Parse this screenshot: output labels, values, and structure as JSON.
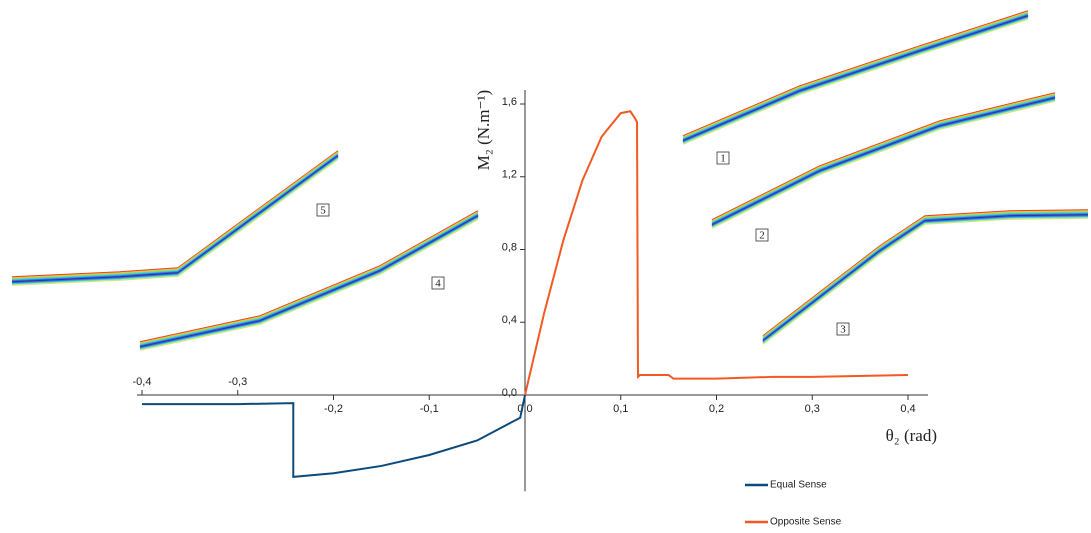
{
  "chart_data": {
    "type": "line",
    "x_label": "θ₂ (rad)",
    "y_label": "M₂ (N.m⁻¹)",
    "xlim": [
      -0.4,
      0.4
    ],
    "ylim": [
      -0.53,
      1.6
    ],
    "xticks": [
      {
        "value": -0.4,
        "label": "-0,4"
      },
      {
        "value": -0.3,
        "label": "-0,3"
      },
      {
        "value": -0.2,
        "label": "-0,2"
      },
      {
        "value": -0.1,
        "label": "-0,1"
      },
      {
        "value": 0,
        "label": "0,0"
      },
      {
        "value": 0.1,
        "label": "0,1"
      },
      {
        "value": 0.2,
        "label": "0,2"
      },
      {
        "value": 0.3,
        "label": "0,3"
      },
      {
        "value": 0.4,
        "label": "0,4"
      }
    ],
    "yticks": [
      {
        "value": 0,
        "label": "0,0"
      },
      {
        "value": 0.4,
        "label": "0,4"
      },
      {
        "value": 0.8,
        "label": "0,8"
      },
      {
        "value": 1.2,
        "label": "1,2"
      },
      {
        "value": 1.6,
        "label": "1,6"
      }
    ],
    "series": [
      {
        "name": "Equal Sense",
        "color": "#0b4a7d",
        "x": [
          -0.4,
          -0.3,
          -0.242,
          -0.242,
          -0.2,
          -0.15,
          -0.1,
          -0.05,
          -0.005,
          0
        ],
        "values": [
          -0.05,
          -0.05,
          -0.045,
          -0.45,
          -0.43,
          -0.39,
          -0.33,
          -0.25,
          -0.125,
          0
        ]
      },
      {
        "name": "Opposite Sense",
        "color": "#f25a22",
        "x": [
          0,
          0.02,
          0.04,
          0.06,
          0.08,
          0.1,
          0.11,
          0.115,
          0.117,
          0.118,
          0.12,
          0.15,
          0.155,
          0.2,
          0.26,
          0.3,
          0.4
        ],
        "values": [
          0,
          0.45,
          0.85,
          1.18,
          1.42,
          1.55,
          1.56,
          1.52,
          1.5,
          0.1,
          0.11,
          0.11,
          0.09,
          0.09,
          0.1,
          0.1,
          0.11
        ]
      }
    ],
    "annotations": [
      "1",
      "2",
      "3",
      "4",
      "5"
    ]
  }
}
